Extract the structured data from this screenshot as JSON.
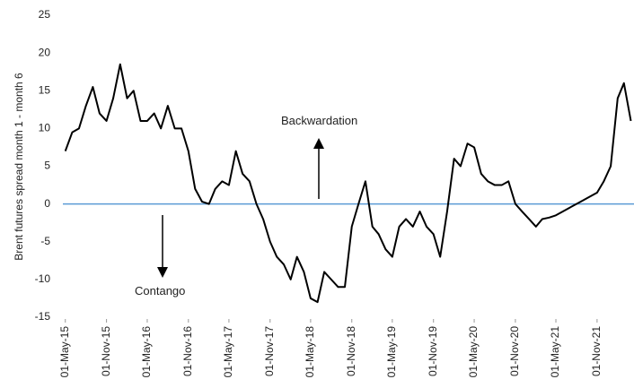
{
  "chart_data": {
    "type": "line",
    "y_label": "Brent futures spread month 1 - month 6",
    "x": [
      "2015-05-01",
      "2015-06-01",
      "2015-07-01",
      "2015-08-01",
      "2015-09-01",
      "2015-10-01",
      "2015-11-01",
      "2015-12-01",
      "2016-01-01",
      "2016-02-01",
      "2016-03-01",
      "2016-04-01",
      "2016-05-01",
      "2016-06-01",
      "2016-07-01",
      "2016-08-01",
      "2016-09-01",
      "2016-10-01",
      "2016-11-01",
      "2016-12-01",
      "2017-01-01",
      "2017-02-01",
      "2017-03-01",
      "2017-04-01",
      "2017-05-01",
      "2017-06-01",
      "2017-07-01",
      "2017-08-01",
      "2017-09-01",
      "2017-10-01",
      "2017-11-01",
      "2017-12-01",
      "2018-01-01",
      "2018-02-01",
      "2018-03-01",
      "2018-04-01",
      "2018-05-01",
      "2018-06-01",
      "2018-07-01",
      "2018-08-01",
      "2018-09-01",
      "2018-10-01",
      "2018-11-01",
      "2018-12-01",
      "2019-01-01",
      "2019-02-01",
      "2019-03-01",
      "2019-04-01",
      "2019-05-01",
      "2019-06-01",
      "2019-07-01",
      "2019-08-01",
      "2019-09-01",
      "2019-10-01",
      "2019-11-01",
      "2019-12-01",
      "2020-01-01",
      "2020-02-01",
      "2020-03-01",
      "2020-04-01",
      "2020-05-01",
      "2020-06-01",
      "2020-07-01",
      "2020-08-01",
      "2020-09-01",
      "2020-10-01",
      "2020-11-01",
      "2020-12-01",
      "2021-01-01",
      "2021-02-01",
      "2021-03-01",
      "2021-04-01",
      "2021-05-01",
      "2021-06-01",
      "2021-07-01",
      "2021-08-01",
      "2021-09-01",
      "2021-10-01",
      "2021-11-01",
      "2021-12-01",
      "2022-01-01",
      "2022-02-01",
      "2022-03-01",
      "2022-04-01"
    ],
    "series": [
      {
        "color": "#000000",
        "values": [
          7,
          9.5,
          10,
          13,
          15.5,
          12,
          11,
          14,
          18.5,
          14,
          15,
          11,
          11,
          12,
          10,
          13,
          10,
          10,
          7,
          2,
          0.3,
          0,
          2,
          3,
          2.5,
          7,
          4,
          3,
          0,
          -2,
          -5,
          -7,
          -8,
          -10,
          -7,
          -9,
          -12.5,
          -13,
          -9,
          -10,
          -11,
          -11,
          -3,
          0,
          3,
          -3,
          -4,
          -6,
          -7,
          -3,
          -2,
          -3,
          -1,
          -3,
          -4,
          -7,
          -1,
          6,
          5,
          8,
          7.5,
          4,
          3,
          2.5,
          2.5,
          3,
          0,
          -1,
          -2,
          -3,
          -2,
          -1.8,
          -1.5,
          -1,
          -0.5,
          0,
          0.5,
          1,
          1.5,
          3,
          5,
          14,
          16,
          11
        ]
      }
    ],
    "xlim": [
      "2015-04-20",
      "2022-04-15"
    ],
    "xticks": [
      {
        "value": "2015-05-01",
        "label": "01-May-15"
      },
      {
        "value": "2015-11-01",
        "label": "01-Nov-15"
      },
      {
        "value": "2016-05-01",
        "label": "01-May-16"
      },
      {
        "value": "2016-11-01",
        "label": "01-Nov-16"
      },
      {
        "value": "2017-05-01",
        "label": "01-May-17"
      },
      {
        "value": "2017-11-01",
        "label": "01-Nov-17"
      },
      {
        "value": "2018-05-01",
        "label": "01-May-18"
      },
      {
        "value": "2018-11-01",
        "label": "01-Nov-18"
      },
      {
        "value": "2019-05-01",
        "label": "01-May-19"
      },
      {
        "value": "2019-11-01",
        "label": "01-Nov-19"
      },
      {
        "value": "2020-05-01",
        "label": "01-May-20"
      },
      {
        "value": "2020-11-01",
        "label": "01-Nov-20"
      },
      {
        "value": "2021-05-01",
        "label": "01-May-21"
      },
      {
        "value": "2021-11-01",
        "label": "01-Nov-21"
      }
    ],
    "ylim": [
      -15,
      25
    ],
    "yticks": [
      -15,
      -10,
      -5,
      0,
      5,
      10,
      15,
      20,
      25
    ],
    "reference_line": {
      "value": 0,
      "color": "#5b9bd5"
    },
    "annotations": [
      "Backwardation",
      "Contango"
    ]
  }
}
